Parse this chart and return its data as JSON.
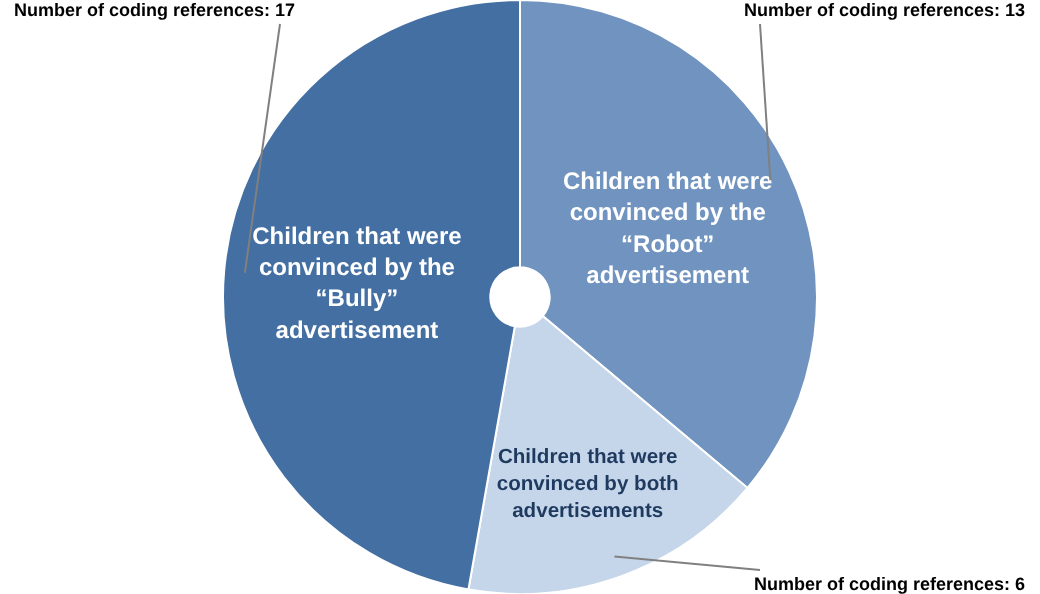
{
  "chart_data": {
    "type": "pie",
    "categories": [
      "Children that were convinced by the “Robot” advertisement",
      "Children that were convinced by both advertisements",
      "Children that were convinced by the “Bully” advertisement"
    ],
    "values": [
      13,
      6,
      17
    ],
    "colors": [
      "#7094bf",
      "#c6d6ea",
      "#436fa2"
    ],
    "value_labels": [
      "Number of coding references: 13",
      "Number of coding references: 6",
      "Number of coding references: 17"
    ],
    "legend": false
  }
}
